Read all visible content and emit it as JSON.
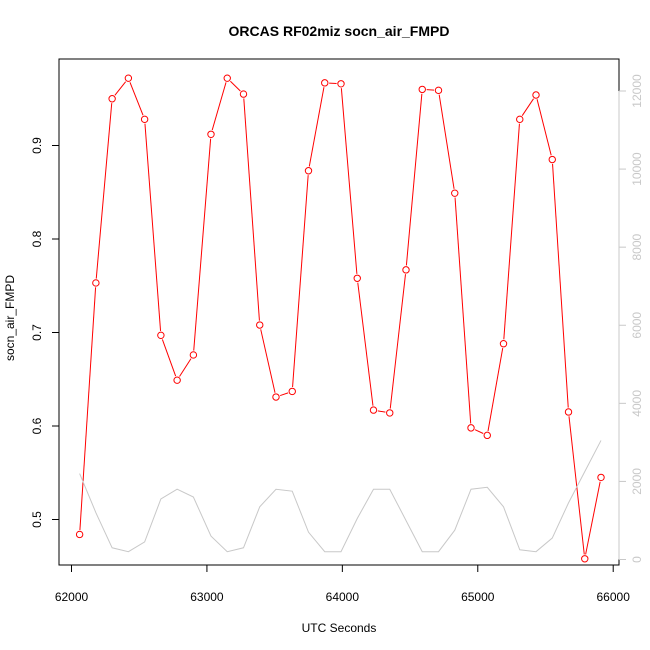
{
  "chart_data": {
    "type": "line",
    "title": "ORCAS RF02miz socn_air_FMPD",
    "xlabel": "UTC Seconds",
    "ylabel": "socn_air_FMPD",
    "y2label": "",
    "xlim": [
      62000,
      66000
    ],
    "ylim": [
      0.46,
      0.97
    ],
    "y2lim": [
      0,
      12000
    ],
    "x_ticks": [
      62000,
      63000,
      64000,
      65000,
      66000
    ],
    "y_ticks": [
      0.5,
      0.6,
      0.7,
      0.8,
      0.9
    ],
    "y2_ticks": [
      0,
      2000,
      4000,
      6000,
      8000,
      10000,
      12000
    ],
    "x_tick_labels": [
      "62000",
      "63000",
      "64000",
      "65000",
      "66000"
    ],
    "y_tick_labels": [
      "0.5",
      "0.6",
      "0.7",
      "0.8",
      "0.9"
    ],
    "y2_tick_labels": [
      "0",
      "2000",
      "4000",
      "6000",
      "8000",
      "10000",
      "12000"
    ],
    "grid": false,
    "colors": {
      "primary_series": "#ff0000",
      "secondary_series": "#c8c8c8",
      "right_axis": "#c8c8c8",
      "frame": "#000000"
    },
    "series": [
      {
        "axis": "left",
        "style": "line-with-open-circles",
        "x": [
          62060,
          62180,
          62300,
          62420,
          62540,
          62660,
          62780,
          62900,
          63030,
          63150,
          63270,
          63390,
          63510,
          63630,
          63750,
          63870,
          63990,
          64110,
          64230,
          64350,
          64470,
          64590,
          64710,
          64830,
          64950,
          65070,
          65190,
          65310,
          65430,
          65550,
          65670,
          65790,
          65910
        ],
        "values": [
          0.484,
          0.753,
          0.95,
          0.972,
          0.928,
          0.697,
          0.649,
          0.676,
          0.912,
          0.972,
          0.955,
          0.708,
          0.631,
          0.637,
          0.873,
          0.967,
          0.966,
          0.758,
          0.617,
          0.614,
          0.767,
          0.96,
          0.959,
          0.849,
          0.598,
          0.59,
          0.688,
          0.928,
          0.954,
          0.885,
          0.615,
          0.458,
          0.545
        ]
      },
      {
        "axis": "right",
        "style": "line",
        "x": [
          62060,
          62180,
          62300,
          62420,
          62540,
          62660,
          62780,
          62900,
          63030,
          63150,
          63270,
          63390,
          63510,
          63630,
          63750,
          63870,
          63990,
          64110,
          64230,
          64350,
          64470,
          64590,
          64710,
          64830,
          64950,
          65070,
          65190,
          65310,
          65430,
          65550,
          65670,
          65790,
          65910
        ],
        "values": [
          2200,
          1200,
          300,
          200,
          450,
          1550,
          1800,
          1600,
          600,
          200,
          300,
          1350,
          1800,
          1750,
          700,
          200,
          200,
          1050,
          1800,
          1800,
          1000,
          200,
          200,
          750,
          1800,
          1850,
          1350,
          250,
          200,
          550,
          1450,
          2250,
          3050
        ]
      }
    ]
  }
}
